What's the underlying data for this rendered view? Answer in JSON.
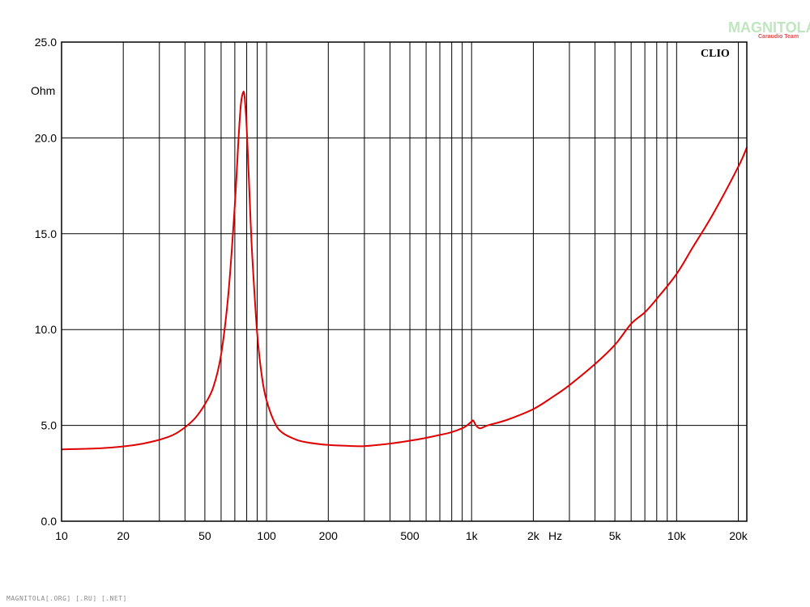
{
  "watermark": {
    "main": "MAGNITOLA",
    "sub": "Caraudio Team"
  },
  "footer": "MAGNITOLA[.ORG] [.RU] [.NET]",
  "colors": {
    "curve": "#e00000",
    "grid": "#000000",
    "background": "#ffffff"
  },
  "chart_data": {
    "type": "line",
    "title": "",
    "brand": "CLIO",
    "xlabel": "Hz",
    "ylabel": "Ohm",
    "x_scale": "log",
    "xlim": [
      10,
      22000
    ],
    "ylim": [
      0,
      25
    ],
    "grid": true,
    "y_ticks": [
      {
        "value": 0,
        "label": "0.0"
      },
      {
        "value": 5,
        "label": "5.0"
      },
      {
        "value": 10,
        "label": "10.0"
      },
      {
        "value": 15,
        "label": "15.0"
      },
      {
        "value": 20,
        "label": "20.0"
      },
      {
        "value": 25,
        "label": "25.0"
      }
    ],
    "x_ticks": [
      {
        "value": 10,
        "label": "10"
      },
      {
        "value": 20,
        "label": "20"
      },
      {
        "value": 50,
        "label": "50"
      },
      {
        "value": 100,
        "label": "100"
      },
      {
        "value": 200,
        "label": "200"
      },
      {
        "value": 500,
        "label": "500"
      },
      {
        "value": 1000,
        "label": "1k"
      },
      {
        "value": 2000,
        "label": "2k"
      },
      {
        "value": 5000,
        "label": "5k"
      },
      {
        "value": 10000,
        "label": "10k"
      },
      {
        "value": 20000,
        "label": "20k"
      }
    ],
    "x_minor_grid": [
      30,
      40,
      60,
      70,
      80,
      90,
      300,
      400,
      600,
      700,
      800,
      900,
      3000,
      4000,
      6000,
      7000,
      8000,
      9000
    ],
    "series": [
      {
        "color": "#e00000",
        "x": [
          10,
          15,
          20,
          25,
          30,
          35,
          40,
          45,
          50,
          55,
          60,
          65,
          70,
          73,
          75,
          77,
          78,
          79,
          80,
          82,
          85,
          90,
          95,
          100,
          110,
          120,
          140,
          160,
          200,
          250,
          300,
          400,
          500,
          600,
          700,
          800,
          900,
          950,
          1000,
          1020,
          1050,
          1100,
          1200,
          1500,
          2000,
          2500,
          3000,
          4000,
          5000,
          6000,
          7000,
          8000,
          10000,
          12000,
          15000,
          20000,
          22000
        ],
        "y": [
          3.75,
          3.8,
          3.9,
          4.05,
          4.25,
          4.5,
          4.9,
          5.4,
          6.1,
          7.0,
          8.7,
          11.8,
          16.5,
          20.0,
          21.8,
          22.4,
          22.2,
          21.5,
          20.5,
          17.8,
          14.0,
          9.8,
          7.5,
          6.3,
          5.1,
          4.6,
          4.25,
          4.1,
          3.98,
          3.93,
          3.92,
          4.05,
          4.2,
          4.35,
          4.5,
          4.65,
          4.85,
          5.0,
          5.2,
          5.25,
          5.0,
          4.85,
          5.0,
          5.3,
          5.85,
          6.5,
          7.1,
          8.2,
          9.2,
          10.3,
          10.9,
          11.6,
          12.9,
          14.3,
          16.0,
          18.5,
          19.5
        ]
      }
    ]
  }
}
